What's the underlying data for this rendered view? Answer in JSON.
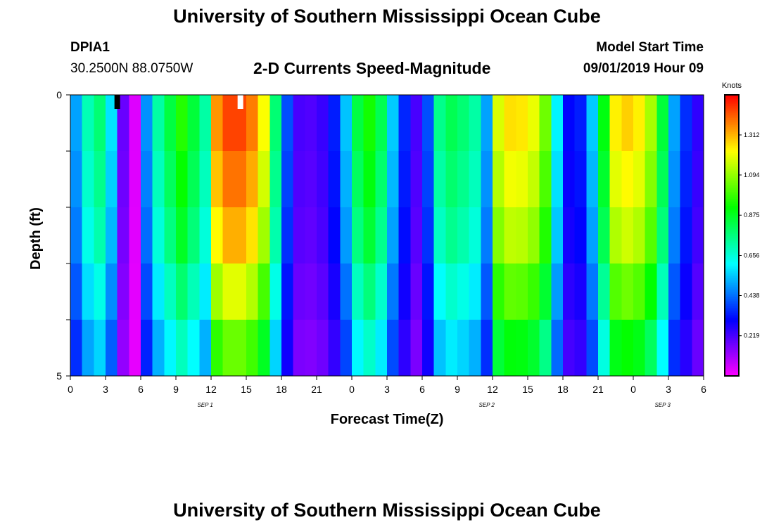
{
  "page": {
    "title_top": "University of Southern Mississippi Ocean Cube",
    "title_bottom": "University of Southern Mississippi Ocean Cube",
    "station": "DPIA1",
    "coords": "30.2500N 88.0750W",
    "plot_title": "2-D Currents Speed-Magnitude",
    "model_label": "Model Start Time",
    "model_time": "09/01/2019 Hour 09"
  },
  "chart_data": {
    "type": "heatmap",
    "title": "2-D Currents Speed-Magnitude",
    "xlabel": "Forecast Time(Z)",
    "ylabel": "Depth (ft)",
    "colorbar_label": "Knots",
    "x_range": [
      0,
      54
    ],
    "y_range": [
      0,
      5
    ],
    "x_ticks": [
      "0",
      "3",
      "6",
      "9",
      "12",
      "15",
      "18",
      "21",
      "0",
      "3",
      "6",
      "9",
      "12",
      "15",
      "18",
      "21",
      "0",
      "3",
      "6"
    ],
    "y_ticks": [
      "0",
      "5"
    ],
    "date_labels": [
      {
        "text": "SEP 1",
        "hour": 11.5
      },
      {
        "text": "SEP 2",
        "hour": 35.5
      },
      {
        "text": "SEP 3",
        "hour": 50.5
      }
    ],
    "colorbar_ticks": [
      "0.219",
      "0.438",
      "0.656",
      "0.875",
      "1.094",
      "1.312"
    ],
    "colorbar_range": [
      0,
      1.53
    ],
    "depth_levels_ft": [
      0,
      0.5,
      1.5,
      2.5,
      3.5,
      4.5
    ],
    "hour_profile_knots": [
      0.5,
      0.7,
      0.78,
      0.58,
      0.18,
      0.04,
      0.48,
      0.72,
      0.84,
      0.96,
      0.85,
      0.72,
      1.35,
      1.45,
      1.45,
      1.38,
      1.22,
      0.78,
      0.4,
      0.22,
      0.21,
      0.24,
      0.34,
      0.54,
      0.84,
      0.94,
      0.82,
      0.55,
      0.35,
      0.22,
      0.4,
      0.75,
      0.82,
      0.78,
      0.72,
      0.5,
      1.18,
      1.26,
      1.25,
      1.2,
      1.05,
      0.6,
      0.31,
      0.34,
      0.55,
      0.9,
      1.24,
      1.28,
      1.24,
      1.12,
      0.85,
      0.5,
      0.36,
      0.25
    ],
    "depth_scale": [
      1.0,
      1.0,
      0.96,
      0.91,
      0.82,
      0.72
    ],
    "missing": [
      {
        "hour": 4,
        "depth_level": 0,
        "color": "#000000"
      },
      {
        "hour": 14.5,
        "depth_level": 0,
        "color": "#ffffff"
      }
    ]
  }
}
